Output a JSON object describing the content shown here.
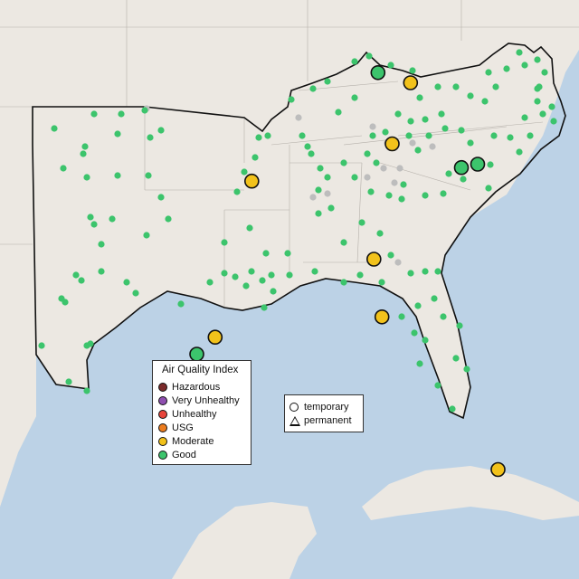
{
  "colors": {
    "land": "#ece8e2",
    "water": "#bcd2e6",
    "good": "#3cc46c",
    "moderate": "#f2c21b",
    "inactive": "#bdbdbd",
    "border": "#111111"
  },
  "legend": {
    "title": "Air Quality Index",
    "items": [
      {
        "label": "Hazardous",
        "color": "#7b2a2a"
      },
      {
        "label": "Very Unhealthy",
        "color": "#8f4fb0"
      },
      {
        "label": "Unhealthy",
        "color": "#e8453c"
      },
      {
        "label": "USG",
        "color": "#ec7c1e"
      },
      {
        "label": "Moderate",
        "color": "#f2c21b"
      },
      {
        "label": "Good",
        "color": "#3cc46c"
      }
    ]
  },
  "type_legend": {
    "items": [
      {
        "label": "temporary",
        "shape": "circle"
      },
      {
        "label": "permanent",
        "shape": "triangle"
      }
    ]
  },
  "map_data": {
    "region": "Southeastern United States",
    "large_monitors": [
      {
        "lon": -86.1,
        "lat": 37.9,
        "aqi": "Good"
      },
      {
        "lon": -84.5,
        "lat": 37.6,
        "aqi": "Moderate"
      },
      {
        "lon": -85.4,
        "lat": 35.8,
        "aqi": "Moderate"
      },
      {
        "lon": -92.3,
        "lat": 34.7,
        "aqi": "Moderate"
      },
      {
        "lon": -82.0,
        "lat": 35.1,
        "aqi": "Good"
      },
      {
        "lon": -81.2,
        "lat": 35.2,
        "aqi": "Good"
      },
      {
        "lon": -86.3,
        "lat": 32.4,
        "aqi": "Moderate"
      },
      {
        "lon": -85.9,
        "lat": 30.7,
        "aqi": "Moderate"
      },
      {
        "lon": -94.1,
        "lat": 30.1,
        "aqi": "Moderate"
      },
      {
        "lon": -95.0,
        "lat": 29.6,
        "aqi": "Good"
      },
      {
        "lon": -80.2,
        "lat": 26.2,
        "aqi": "Moderate"
      }
    ]
  }
}
